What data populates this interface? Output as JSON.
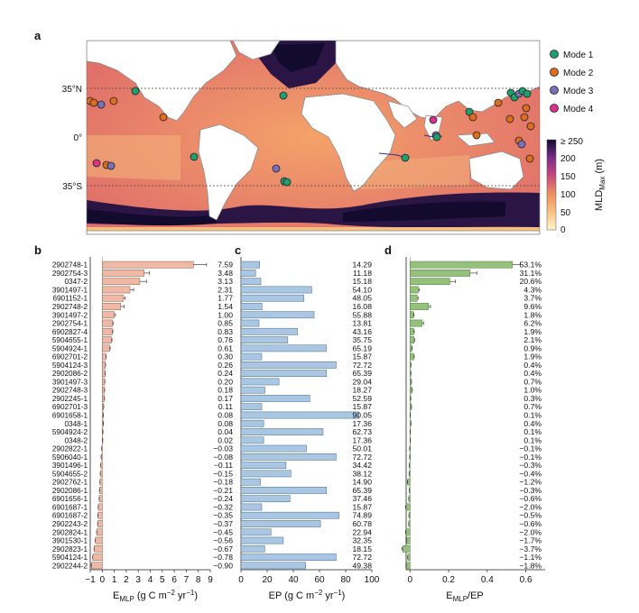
{
  "figure": {
    "panel_labels": {
      "a": "a",
      "b": "b",
      "c": "c",
      "d": "d"
    },
    "map": {
      "lat_labels": [
        "35°N",
        "0°",
        "35°S"
      ],
      "legend": [
        {
          "label": "Mode 1",
          "color": "#1f9e6e"
        },
        {
          "label": "Mode 2",
          "color": "#e06c1e"
        },
        {
          "label": "Mode 3",
          "color": "#7a6fb8"
        },
        {
          "label": "Mode 4",
          "color": "#d6348c"
        }
      ],
      "colorbar": {
        "ticks": [
          "≥ 250",
          "200",
          "150",
          "100",
          "50",
          "0"
        ],
        "label_main": "MLD",
        "label_sub": "Max",
        "label_unit": " (m)"
      }
    }
  },
  "chart_data": [
    {
      "type": "bar",
      "panel": "b",
      "orientation": "horizontal",
      "categories": [
        "2902748-1",
        "2902754-3",
        "0347-2",
        "3901497-1",
        "6901152-1",
        "2902748-2",
        "3901497-2",
        "2902754-1",
        "6902827-4",
        "5904655-1",
        "5904924-1",
        "6902701-2",
        "5904124-3",
        "2902086-2",
        "3901497-3",
        "2902748-3",
        "2902245-1",
        "6902701-3",
        "6901658-1",
        "0348-1",
        "5904924-2",
        "0348-2",
        "2902822-1",
        "5906040-1",
        "3901496-1",
        "5904655-2",
        "2902762-1",
        "2902086-1",
        "6901656-1",
        "6901687-1",
        "6901687-2",
        "2902243-2",
        "2902824-1",
        "3901530-1",
        "2902823-1",
        "5904124-1",
        "2902244-2"
      ],
      "values": [
        7.59,
        3.48,
        3.13,
        2.31,
        1.77,
        1.54,
        1.0,
        0.85,
        0.83,
        0.76,
        0.61,
        0.3,
        0.26,
        0.24,
        0.2,
        0.18,
        0.17,
        0.11,
        0.08,
        0.08,
        0.04,
        0.02,
        -0.03,
        -0.08,
        -0.11,
        -0.15,
        -0.18,
        -0.21,
        -0.24,
        -0.32,
        -0.35,
        -0.37,
        -0.45,
        -0.56,
        -0.67,
        -0.78,
        -0.9
      ],
      "value_labels": [
        "7.59",
        "3.48",
        "3.13",
        "2.31",
        "1.77",
        "1.54",
        "1.00",
        "0.85",
        "0.83",
        "0.76",
        "0.61",
        "0.30",
        "0.26",
        "0.24",
        "0.20",
        "0.18",
        "0.17",
        "0.11",
        "0.08",
        "0.08",
        "0.04",
        "0.02",
        "−0.03",
        "−0.08",
        "−0.11",
        "−0.15",
        "−0.18",
        "−0.21",
        "−0.24",
        "−0.32",
        "−0.35",
        "−0.37",
        "−0.45",
        "−0.56",
        "−0.67",
        "−0.78",
        "−0.90"
      ],
      "errors": [
        1.1,
        0.45,
        0.55,
        0.3,
        0.15,
        0.3,
        0.1,
        0.05,
        0.05,
        0.05,
        0.05,
        0.02,
        0.02,
        0.02,
        0.02,
        0.02,
        0.02,
        0.02,
        0.02,
        0.02,
        0.02,
        0.02,
        0.02,
        0.02,
        0.02,
        0.02,
        0.02,
        0.02,
        0.02,
        0.02,
        0.02,
        0.02,
        0.02,
        0.02,
        0.02,
        0.02,
        0.02
      ],
      "xlim": [
        -1,
        9
      ],
      "xticks": [
        "−1",
        "0",
        "1",
        "2",
        "3",
        "4",
        "5",
        "6",
        "7",
        "8",
        "9"
      ],
      "xlabel_main": "E",
      "xlabel_sub": "MLP",
      "xlabel_unit": " (g C m",
      "xlabel_exp1": "−2",
      "xlabel_mid": " yr",
      "xlabel_exp2": "−1",
      "xlabel_end": ")",
      "color": "#f0b9a6",
      "edge": "#8a5a4a"
    },
    {
      "type": "bar",
      "panel": "c",
      "orientation": "horizontal",
      "values": [
        14.29,
        11.18,
        15.18,
        54.1,
        48.05,
        16.08,
        55.88,
        13.81,
        43.16,
        35.75,
        65.19,
        15.87,
        72.72,
        65.39,
        29.04,
        18.27,
        52.59,
        15.87,
        90.05,
        17.36,
        62.73,
        17.36,
        50.01,
        72.72,
        34.42,
        38.12,
        14.9,
        65.39,
        37.46,
        15.87,
        74.89,
        60.78,
        22.94,
        32.35,
        18.15,
        72.72,
        49.38
      ],
      "value_labels": [
        "14.29",
        "11.18",
        "15.18",
        "54.10",
        "48.05",
        "16.08",
        "55.88",
        "13.81",
        "43.16",
        "35.75",
        "65.19",
        "15.87",
        "72.72",
        "65.39",
        "29.04",
        "18.27",
        "52.59",
        "15.87",
        "90.05",
        "17.36",
        "62.73",
        "17.36",
        "50.01",
        "72.72",
        "34.42",
        "38.12",
        "14.90",
        "65.39",
        "37.46",
        "15.87",
        "74.89",
        "60.78",
        "22.94",
        "32.35",
        "18.15",
        "72.72",
        "49.38"
      ],
      "xlim": [
        0,
        100
      ],
      "xticks": [
        "0",
        "20",
        "40",
        "60",
        "80",
        "100"
      ],
      "xlabel_main": "EP (g C m",
      "xlabel_exp1": "−2",
      "xlabel_mid": " yr",
      "xlabel_exp2": "−1",
      "xlabel_end": ")",
      "color": "#a9c6e3",
      "edge": "#4a6a8a"
    },
    {
      "type": "bar",
      "panel": "d",
      "orientation": "horizontal",
      "values": [
        0.531,
        0.311,
        0.206,
        0.043,
        0.037,
        0.096,
        0.018,
        0.062,
        0.019,
        0.021,
        0.009,
        0.019,
        0.004,
        0.004,
        0.007,
        0.01,
        0.003,
        0.007,
        0.001,
        0.004,
        0.001,
        0.001,
        -0.001,
        -0.001,
        -0.003,
        -0.004,
        -0.012,
        -0.003,
        -0.006,
        -0.02,
        -0.005,
        -0.006,
        -0.02,
        -0.017,
        -0.037,
        -0.011,
        -0.018
      ],
      "value_labels": [
        "53.1%",
        "31.1%",
        "20.6%",
        "4.3%",
        "3.7%",
        "9.6%",
        "1.8%",
        "6.2%",
        "1.9%",
        "2.1%",
        "0.9%",
        "1.9%",
        "0.4%",
        "0.4%",
        "0.7%",
        "1.0%",
        "0.3%",
        "0.7%",
        "0.1%",
        "0.4%",
        "0.1%",
        "0.1%",
        "−0.1%",
        "−0.1%",
        "−0.3%",
        "−0.4%",
        "−1.2%",
        "−0.3%",
        "−0.6%",
        "−2.0%",
        "−0.5%",
        "−0.6%",
        "−2.0%",
        "−1.7%",
        "−3.7%",
        "−1.1%",
        "−1.8%"
      ],
      "errors": [
        0.04,
        0.035,
        0.03,
        0.006,
        0.005,
        0.01,
        0.003,
        0.008,
        0.003,
        0.003,
        0.002,
        0.003,
        0.001,
        0.001,
        0.001,
        0.002,
        0.001,
        0.001,
        0.001,
        0.001,
        0.001,
        0.001,
        0.001,
        0.001,
        0.001,
        0.001,
        0.002,
        0.001,
        0.001,
        0.003,
        0.001,
        0.001,
        0.003,
        0.003,
        0.005,
        0.002,
        0.003
      ],
      "xlim": [
        -0.02,
        0.7
      ],
      "xtick_values": [
        0,
        0.2,
        0.4,
        0.6
      ],
      "xticks": [
        "0",
        "0.2",
        "0.4",
        "0.6"
      ],
      "xlabel_main": "E",
      "xlabel_sub": "MLP",
      "xlabel_end": "/EP",
      "color": "#94c27c",
      "edge": "#4e7a3a"
    }
  ]
}
